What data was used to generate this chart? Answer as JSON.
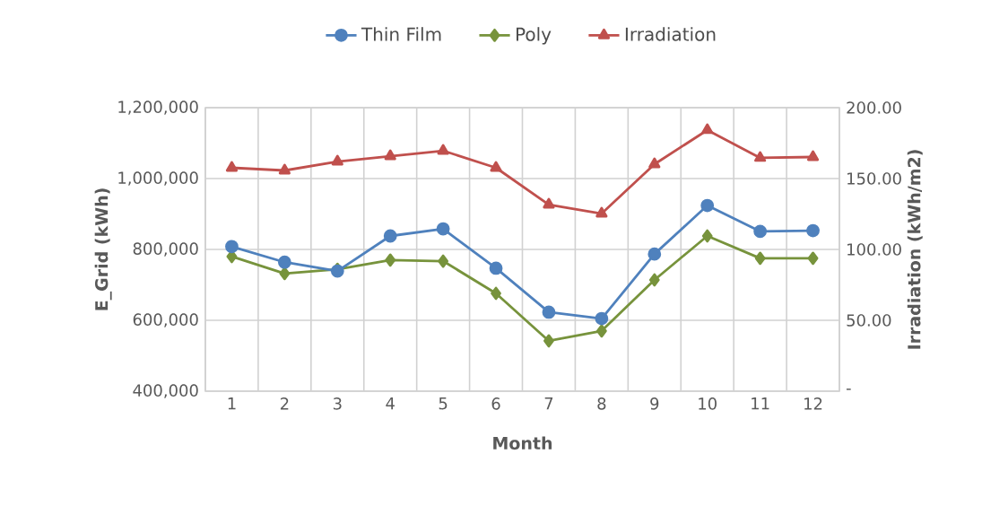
{
  "chart_data": {
    "type": "line",
    "xlabel": "Month",
    "ylabel": "E_Grid (kWh)",
    "y2label": "Irradiation (kWh/m2)",
    "categories": [
      "1",
      "2",
      "3",
      "4",
      "5",
      "6",
      "7",
      "8",
      "9",
      "10",
      "11",
      "12"
    ],
    "series": [
      {
        "name": "Thin Film",
        "color": "#4f81bd",
        "marker": "circle",
        "values": [
          808000,
          764000,
          739000,
          838000,
          858000,
          747000,
          623000,
          605000,
          787000,
          924000,
          851000,
          853000
        ]
      },
      {
        "name": "Poly",
        "color": "#77933c",
        "marker": "diamond",
        "values": [
          780000,
          732000,
          744000,
          770000,
          767000,
          676000,
          542000,
          570000,
          714000,
          838000,
          775000,
          775000
        ]
      },
      {
        "name": "Irradiation",
        "color": "#c0504d",
        "marker": "triangle",
        "axis": "y2",
        "values": [
          157.6,
          155.7,
          162.0,
          165.8,
          169.6,
          157.6,
          131.6,
          125.3,
          160.1,
          184.2,
          164.6,
          165.2
        ]
      }
    ],
    "ylim": [
      400000,
      1200000
    ],
    "yticks": [
      {
        "value": 400000,
        "label": "400,000"
      },
      {
        "value": 600000,
        "label": "600,000"
      },
      {
        "value": 800000,
        "label": "800,000"
      },
      {
        "value": 1000000,
        "label": "1,000,000"
      },
      {
        "value": 1200000,
        "label": "1,200,000"
      }
    ],
    "y2lim": [
      0,
      200
    ],
    "y2ticks": [
      {
        "value": 0,
        "label": "-"
      },
      {
        "value": 50,
        "label": "50.00"
      },
      {
        "value": 100,
        "label": "100.00"
      },
      {
        "value": 150,
        "label": "150.00"
      },
      {
        "value": 200,
        "label": "200.00"
      }
    ],
    "grid": true,
    "legend": "top",
    "line_style": "solid"
  }
}
